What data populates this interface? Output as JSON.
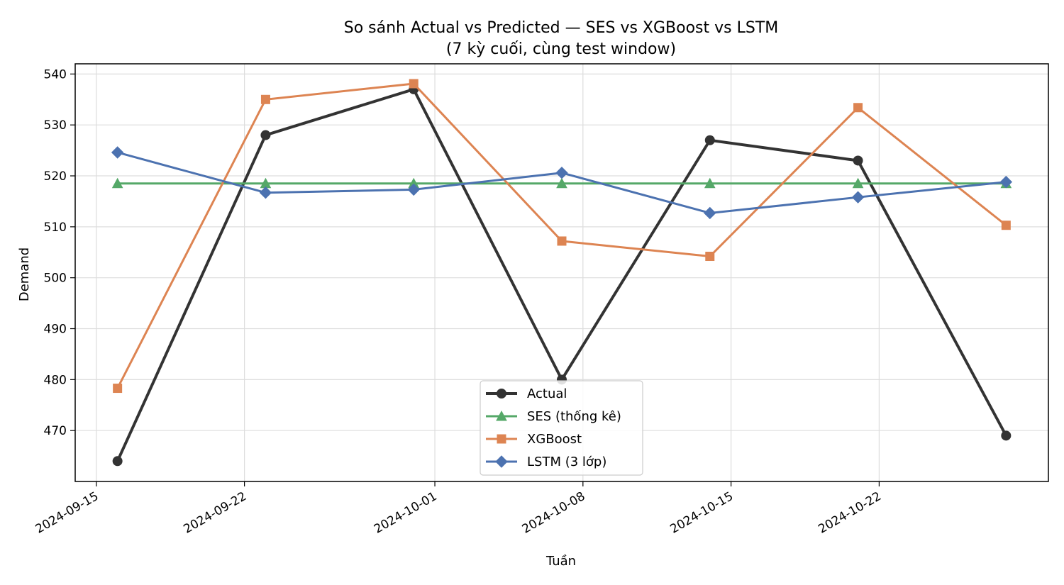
{
  "chart_data": {
    "type": "line",
    "title": "So sánh Actual vs Predicted — SES vs XGBoost vs LSTM",
    "subtitle": "(7 kỳ cuối, cùng test window)",
    "xlabel": "Tuần",
    "ylabel": "Demand",
    "x": [
      "2024-09-16",
      "2024-09-23",
      "2024-09-30",
      "2024-10-07",
      "2024-10-14",
      "2024-10-21",
      "2024-10-28"
    ],
    "xlim": [
      "2024-09-14",
      "2024-10-30"
    ],
    "ylim": [
      460,
      542
    ],
    "x_ticks": [
      "2024-09-15",
      "2024-09-22",
      "2024-10-01",
      "2024-10-08",
      "2024-10-15",
      "2024-10-22"
    ],
    "y_ticks": [
      470,
      480,
      490,
      500,
      510,
      520,
      530,
      540
    ],
    "grid": true,
    "legend_position": "bottom-center",
    "series": [
      {
        "name": "Actual",
        "values": [
          464,
          528,
          537,
          480,
          527,
          523,
          469
        ],
        "color": "#333333",
        "marker": "circle",
        "line_width": 4
      },
      {
        "name": "SES (thống kê)",
        "values": [
          518.5,
          518.5,
          518.5,
          518.5,
          518.5,
          518.5,
          518.5
        ],
        "color": "#55a868",
        "marker": "triangle",
        "line_width": 3
      },
      {
        "name": "XGBoost",
        "values": [
          478.3,
          535.0,
          538.1,
          507.2,
          504.2,
          533.4,
          510.3
        ],
        "color": "#dd8452",
        "marker": "square",
        "line_width": 3
      },
      {
        "name": "LSTM (3 lớp)",
        "values": [
          524.6,
          516.7,
          517.3,
          520.6,
          512.7,
          515.8,
          518.8
        ],
        "color": "#4c72b0",
        "marker": "diamond",
        "line_width": 3
      }
    ]
  }
}
